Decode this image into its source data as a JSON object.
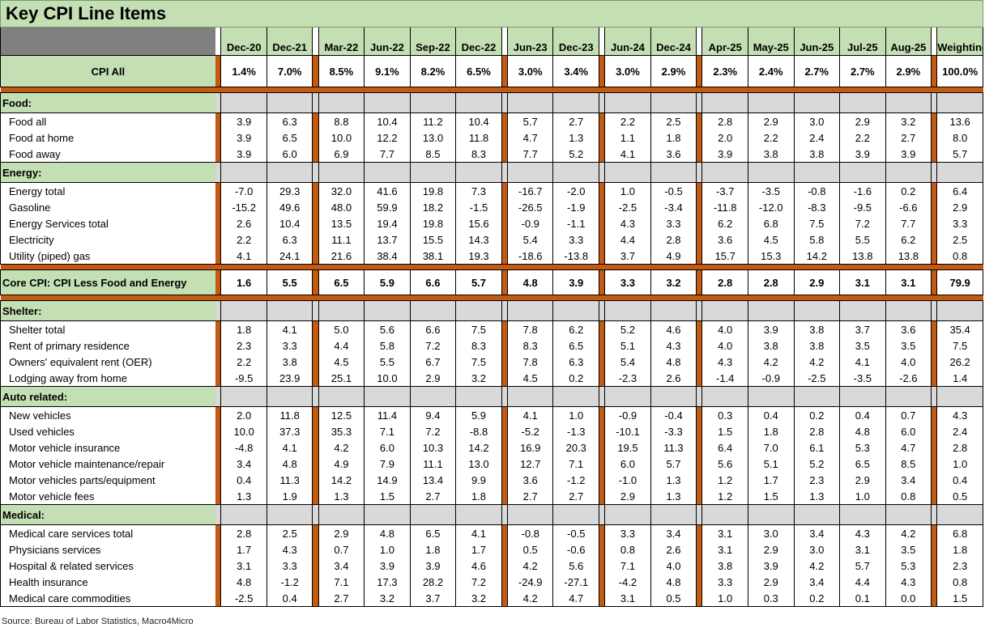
{
  "title": "Key CPI Line Items",
  "source": "Source: Bureau of Labor Statistics, Macro4Micro",
  "columns": [
    "Dec-20",
    "Dec-21",
    "Mar-22",
    "Jun-22",
    "Sep-22",
    "Dec-22",
    "Jun-23",
    "Dec-23",
    "Jun-24",
    "Dec-24",
    "Apr-25",
    "May-25",
    "Jun-25",
    "Jul-25",
    "Aug-25",
    "Weighting"
  ],
  "cpi_all": {
    "label": "CPI All",
    "values": [
      "1.4%",
      "7.0%",
      "8.5%",
      "9.1%",
      "8.2%",
      "6.5%",
      "3.0%",
      "3.4%",
      "3.0%",
      "2.9%",
      "2.3%",
      "2.4%",
      "2.7%",
      "2.7%",
      "2.9%",
      "100.0%"
    ]
  },
  "core": {
    "label": "Core CPI: CPI Less Food and Energy",
    "values": [
      "1.6",
      "5.5",
      "6.5",
      "5.9",
      "6.6",
      "5.7",
      "4.8",
      "3.9",
      "3.3",
      "3.2",
      "2.8",
      "2.8",
      "2.9",
      "3.1",
      "3.1",
      "79.9"
    ]
  },
  "sections": [
    {
      "title": "Food:",
      "rows": [
        {
          "label": "Food all",
          "values": [
            "3.9",
            "6.3",
            "8.8",
            "10.4",
            "11.2",
            "10.4",
            "5.7",
            "2.7",
            "2.2",
            "2.5",
            "2.8",
            "2.9",
            "3.0",
            "2.9",
            "3.2",
            "13.6"
          ]
        },
        {
          "label": "Food at home",
          "values": [
            "3.9",
            "6.5",
            "10.0",
            "12.2",
            "13.0",
            "11.8",
            "4.7",
            "1.3",
            "1.1",
            "1.8",
            "2.0",
            "2.2",
            "2.4",
            "2.2",
            "2.7",
            "8.0"
          ]
        },
        {
          "label": "Food away",
          "values": [
            "3.9",
            "6.0",
            "6.9",
            "7.7",
            "8.5",
            "8.3",
            "7.7",
            "5.2",
            "4.1",
            "3.6",
            "3.9",
            "3.8",
            "3.8",
            "3.9",
            "3.9",
            "5.7"
          ]
        }
      ]
    },
    {
      "title": "Energy:",
      "rows": [
        {
          "label": "Energy total",
          "values": [
            "-7.0",
            "29.3",
            "32.0",
            "41.6",
            "19.8",
            "7.3",
            "-16.7",
            "-2.0",
            "1.0",
            "-0.5",
            "-3.7",
            "-3.5",
            "-0.8",
            "-1.6",
            "0.2",
            "6.4"
          ]
        },
        {
          "label": "Gasoline",
          "values": [
            "-15.2",
            "49.6",
            "48.0",
            "59.9",
            "18.2",
            "-1.5",
            "-26.5",
            "-1.9",
            "-2.5",
            "-3.4",
            "-11.8",
            "-12.0",
            "-8.3",
            "-9.5",
            "-6.6",
            "2.9"
          ]
        },
        {
          "label": "Energy Services total",
          "values": [
            "2.6",
            "10.4",
            "13.5",
            "19.4",
            "19.8",
            "15.6",
            "-0.9",
            "-1.1",
            "4.3",
            "3.3",
            "6.2",
            "6.8",
            "7.5",
            "7.2",
            "7.7",
            "3.3"
          ]
        },
        {
          "label": "Electricity",
          "values": [
            "2.2",
            "6.3",
            "11.1",
            "13.7",
            "15.5",
            "14.3",
            "5.4",
            "3.3",
            "4.4",
            "2.8",
            "3.6",
            "4.5",
            "5.8",
            "5.5",
            "6.2",
            "2.5"
          ]
        },
        {
          "label": "Utility (piped) gas",
          "values": [
            "4.1",
            "24.1",
            "21.6",
            "38.4",
            "38.1",
            "19.3",
            "-18.6",
            "-13.8",
            "3.7",
            "4.9",
            "15.7",
            "15.3",
            "14.2",
            "13.8",
            "13.8",
            "0.8"
          ]
        }
      ]
    },
    {
      "title": "Shelter:",
      "rows": [
        {
          "label": "Shelter total",
          "values": [
            "1.8",
            "4.1",
            "5.0",
            "5.6",
            "6.6",
            "7.5",
            "7.8",
            "6.2",
            "5.2",
            "4.6",
            "4.0",
            "3.9",
            "3.8",
            "3.7",
            "3.6",
            "35.4"
          ]
        },
        {
          "label": "Rent of primary residence",
          "values": [
            "2.3",
            "3.3",
            "4.4",
            "5.8",
            "7.2",
            "8.3",
            "8.3",
            "6.5",
            "5.1",
            "4.3",
            "4.0",
            "3.8",
            "3.8",
            "3.5",
            "3.5",
            "7.5"
          ]
        },
        {
          "label": "Owners' equivalent rent (OER)",
          "values": [
            "2.2",
            "3.8",
            "4.5",
            "5.5",
            "6.7",
            "7.5",
            "7.8",
            "6.3",
            "5.4",
            "4.8",
            "4.3",
            "4.2",
            "4.2",
            "4.1",
            "4.0",
            "26.2"
          ]
        },
        {
          "label": "Lodging away from home",
          "values": [
            "-9.5",
            "23.9",
            "25.1",
            "10.0",
            "2.9",
            "3.2",
            "4.5",
            "0.2",
            "-2.3",
            "2.6",
            "-1.4",
            "-0.9",
            "-2.5",
            "-3.5",
            "-2.6",
            "1.4"
          ]
        }
      ]
    },
    {
      "title": "Auto related:",
      "rows": [
        {
          "label": "New vehicles",
          "values": [
            "2.0",
            "11.8",
            "12.5",
            "11.4",
            "9.4",
            "5.9",
            "4.1",
            "1.0",
            "-0.9",
            "-0.4",
            "0.3",
            "0.4",
            "0.2",
            "0.4",
            "0.7",
            "4.3"
          ]
        },
        {
          "label": "Used vehicles",
          "values": [
            "10.0",
            "37.3",
            "35.3",
            "7.1",
            "7.2",
            "-8.8",
            "-5.2",
            "-1.3",
            "-10.1",
            "-3.3",
            "1.5",
            "1.8",
            "2.8",
            "4.8",
            "6.0",
            "2.4"
          ]
        },
        {
          "label": "Motor vehicle insurance",
          "values": [
            "-4.8",
            "4.1",
            "4.2",
            "6.0",
            "10.3",
            "14.2",
            "16.9",
            "20.3",
            "19.5",
            "11.3",
            "6.4",
            "7.0",
            "6.1",
            "5.3",
            "4.7",
            "2.8"
          ]
        },
        {
          "label": "Motor vehicle maintenance/repair",
          "values": [
            "3.4",
            "4.8",
            "4.9",
            "7.9",
            "11.1",
            "13.0",
            "12.7",
            "7.1",
            "6.0",
            "5.7",
            "5.6",
            "5.1",
            "5.2",
            "6.5",
            "8.5",
            "1.0"
          ]
        },
        {
          "label": "Motor vehicles parts/equipment",
          "values": [
            "0.4",
            "11.3",
            "14.2",
            "14.9",
            "13.4",
            "9.9",
            "3.6",
            "-1.2",
            "-1.0",
            "1.3",
            "1.2",
            "1.7",
            "2.3",
            "2.9",
            "3.4",
            "0.4"
          ]
        },
        {
          "label": "Motor vehicle fees",
          "values": [
            "1.3",
            "1.9",
            "1.3",
            "1.5",
            "2.7",
            "1.8",
            "2.7",
            "2.7",
            "2.9",
            "1.3",
            "1.2",
            "1.5",
            "1.3",
            "1.0",
            "0.8",
            "0.5"
          ]
        }
      ]
    },
    {
      "title": "Medical:",
      "rows": [
        {
          "label": "Medical care services total",
          "values": [
            "2.8",
            "2.5",
            "2.9",
            "4.8",
            "6.5",
            "4.1",
            "-0.8",
            "-0.5",
            "3.3",
            "3.4",
            "3.1",
            "3.0",
            "3.4",
            "4.3",
            "4.2",
            "6.8"
          ]
        },
        {
          "label": "Physicians services",
          "values": [
            "1.7",
            "4.3",
            "0.7",
            "1.0",
            "1.8",
            "1.7",
            "0.5",
            "-0.6",
            "0.8",
            "2.6",
            "3.1",
            "2.9",
            "3.0",
            "3.1",
            "3.5",
            "1.8"
          ]
        },
        {
          "label": "Hospital & related services",
          "values": [
            "3.1",
            "3.3",
            "3.4",
            "3.9",
            "3.9",
            "4.6",
            "4.2",
            "5.6",
            "7.1",
            "4.0",
            "3.8",
            "3.9",
            "4.2",
            "5.7",
            "5.3",
            "2.3"
          ]
        },
        {
          "label": "Health insurance",
          "values": [
            "4.8",
            "-1.2",
            "7.1",
            "17.3",
            "28.2",
            "7.2",
            "-24.9",
            "-27.1",
            "-4.2",
            "4.8",
            "3.3",
            "2.9",
            "3.4",
            "4.4",
            "4.3",
            "0.8"
          ]
        },
        {
          "label": "Medical care commodities",
          "values": [
            "-2.5",
            "0.4",
            "2.7",
            "3.2",
            "3.7",
            "3.2",
            "4.2",
            "4.7",
            "3.1",
            "0.5",
            "1.0",
            "0.3",
            "0.2",
            "0.1",
            "0.0",
            "1.5"
          ]
        }
      ]
    }
  ],
  "core_after_section": 1
}
